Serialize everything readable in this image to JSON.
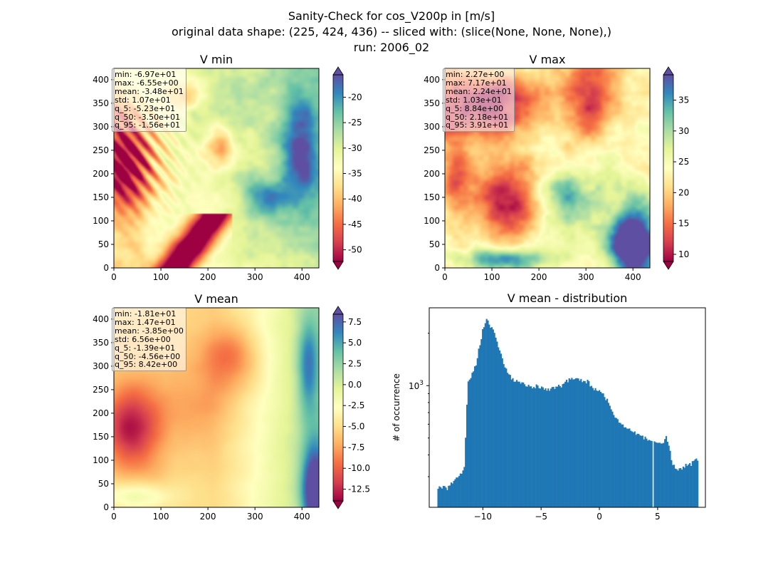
{
  "figure": {
    "title_line1": "Sanity-Check for cos_V200p in [m/s]",
    "title_line2": "original data shape: (225, 424, 436) -- sliced with: (slice(None, None, None),)",
    "title_line3": "run: 2006_02"
  },
  "colormap": "Spectral",
  "chart_data": [
    {
      "type": "heatmap",
      "title": "V min",
      "xlim": [
        0,
        436
      ],
      "ylim": [
        0,
        424
      ],
      "xticks": [
        "0",
        "100",
        "200",
        "300",
        "400"
      ],
      "yticks": [
        "0",
        "50",
        "100",
        "150",
        "200",
        "250",
        "300",
        "350",
        "400"
      ],
      "colorbar": {
        "vmin": -52.3,
        "vmax": -15.6,
        "extend": "both",
        "ticks": [
          "-20",
          "-25",
          "-30",
          "-35",
          "-40",
          "-45",
          "-50"
        ]
      },
      "stats": [
        "min: -6.97e+01",
        "max: -6.55e+00",
        "mean: -3.48e+01",
        "std: 1.07e+01",
        "q_5: -5.23e+01",
        "q_50: -3.50e+01",
        "q_95: -1.56e+01"
      ]
    },
    {
      "type": "heatmap",
      "title": "V max",
      "xlim": [
        0,
        436
      ],
      "ylim": [
        0,
        424
      ],
      "xticks": [
        "0",
        "100",
        "200",
        "300",
        "400"
      ],
      "yticks": [
        "0",
        "50",
        "100",
        "150",
        "200",
        "250",
        "300",
        "350",
        "400"
      ],
      "colorbar": {
        "vmin": 8.84,
        "vmax": 39.1,
        "extend": "both",
        "ticks": [
          "35",
          "30",
          "25",
          "20",
          "15",
          "10"
        ]
      },
      "stats": [
        "min: 2.27e+00",
        "max: 7.17e+01",
        "mean: 2.24e+01",
        "std: 1.03e+01",
        "q_5: 8.84e+00",
        "q_50: 2.18e+01",
        "q_95: 3.91e+01"
      ]
    },
    {
      "type": "heatmap",
      "title": "V mean",
      "xlim": [
        0,
        436
      ],
      "ylim": [
        0,
        424
      ],
      "xticks": [
        "0",
        "100",
        "200",
        "300",
        "400"
      ],
      "yticks": [
        "0",
        "50",
        "100",
        "150",
        "200",
        "250",
        "300",
        "350",
        "400"
      ],
      "colorbar": {
        "vmin": -13.9,
        "vmax": 8.42,
        "extend": "both",
        "ticks": [
          "7.5",
          "5.0",
          "2.5",
          "0.0",
          "-2.5",
          "-5.0",
          "-7.5",
          "-10.0",
          "-12.5"
        ]
      },
      "stats": [
        "min: -1.81e+01",
        "max: 1.47e+01",
        "mean: -3.85e+00",
        "std: 6.56e+00",
        "q_5: -1.39e+01",
        "q_50: -4.56e+00",
        "q_95: 8.42e+00"
      ]
    },
    {
      "type": "bar",
      "title": "V mean - distribution",
      "ylabel": "# of occurrence",
      "yscale": "log",
      "xlim": [
        -14.6,
        9.1
      ],
      "ylim": [
        200,
        2800
      ],
      "xticks": [
        "-10",
        "-5",
        "0",
        "5"
      ],
      "ytick_label": "10",
      "ytick_exp": "3",
      "color": "#1f77b4",
      "hist": {
        "points": [
          [
            -13.9,
            260
          ],
          [
            -13.0,
            256
          ],
          [
            -12.4,
            292
          ],
          [
            -12.0,
            308
          ],
          [
            -11.6,
            326
          ],
          [
            -11.3,
            1010
          ],
          [
            -11.0,
            1140
          ],
          [
            -10.6,
            1320
          ],
          [
            -10.3,
            1680
          ],
          [
            -10.0,
            2080
          ],
          [
            -9.7,
            2460
          ],
          [
            -9.45,
            2240
          ],
          [
            -9.1,
            2050
          ],
          [
            -8.7,
            1720
          ],
          [
            -8.3,
            1400
          ],
          [
            -7.8,
            1150
          ],
          [
            -7.3,
            1070
          ],
          [
            -6.7,
            1030
          ],
          [
            -6.1,
            1000
          ],
          [
            -5.5,
            990
          ],
          [
            -5.0,
            975
          ],
          [
            -4.5,
            960
          ],
          [
            -4.0,
            955
          ],
          [
            -3.3,
            995
          ],
          [
            -2.6,
            1080
          ],
          [
            -2.1,
            1110
          ],
          [
            -1.7,
            1080
          ],
          [
            -1.0,
            1050
          ],
          [
            -0.4,
            945
          ],
          [
            0.0,
            930
          ],
          [
            0.5,
            865
          ],
          [
            1.0,
            740
          ],
          [
            1.5,
            640
          ],
          [
            2.0,
            590
          ],
          [
            2.5,
            555
          ],
          [
            3.0,
            545
          ],
          [
            3.5,
            510
          ],
          [
            4.0,
            500
          ],
          [
            4.4,
            480
          ],
          [
            4.9,
            470
          ],
          [
            5.4,
            455
          ],
          [
            5.7,
            520
          ],
          [
            6.0,
            430
          ],
          [
            6.3,
            350
          ],
          [
            6.8,
            330
          ],
          [
            7.3,
            345
          ],
          [
            7.8,
            350
          ],
          [
            8.1,
            365
          ],
          [
            8.42,
            375
          ]
        ],
        "bin_width": 0.1125,
        "gaps": [
          4.6
        ]
      }
    }
  ]
}
